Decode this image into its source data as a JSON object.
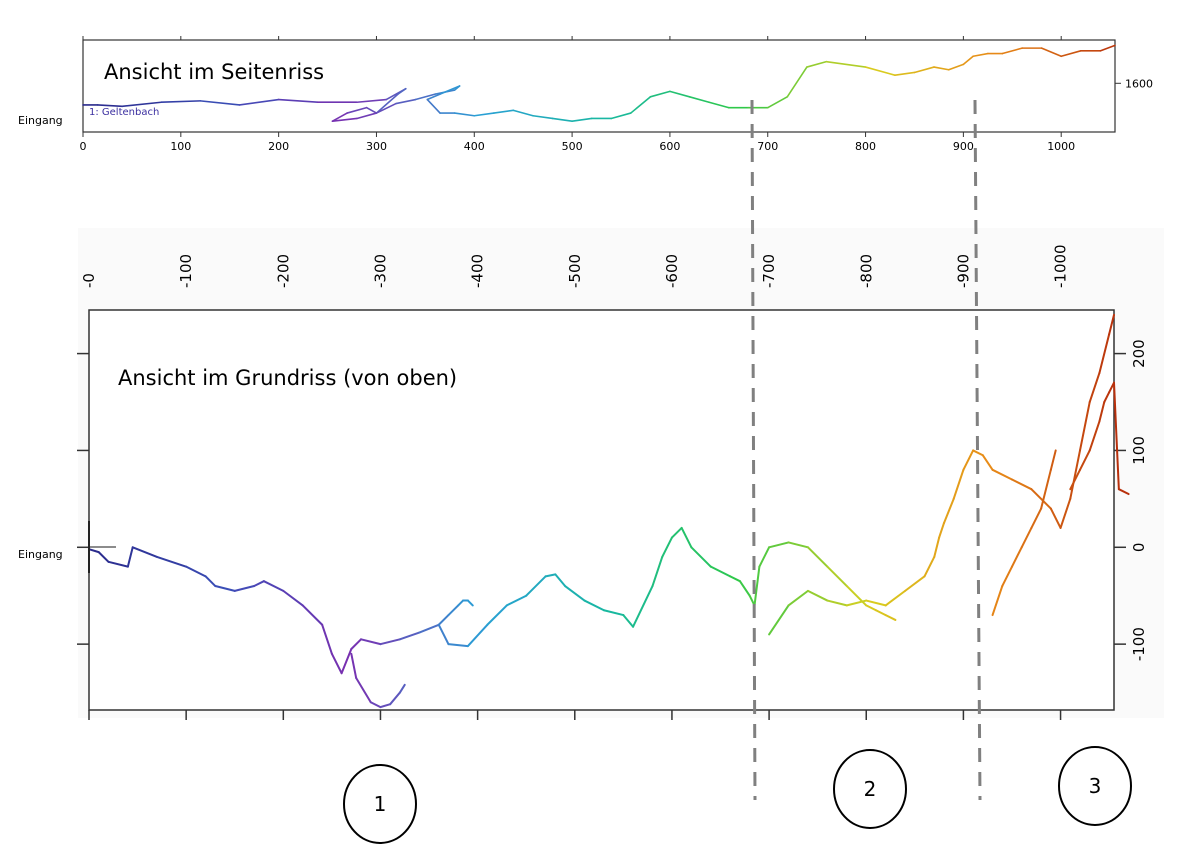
{
  "top_panel": {
    "title": "Ansicht im Seitenriss",
    "entrance_label": "Eingang",
    "series_label": "1: Geltenbach",
    "x_ticks": [
      "0",
      "100",
      "200",
      "300",
      "400",
      "500",
      "600",
      "700",
      "800",
      "900",
      "1000"
    ],
    "y_ticks": [
      "1600"
    ]
  },
  "bottom_panel": {
    "title": "Ansicht im Grundriss (von oben)",
    "entrance_label": "Eingang",
    "x_ticks": [
      "-0",
      "-100",
      "-200",
      "-300",
      "-400",
      "-500",
      "-600",
      "-700",
      "-800",
      "-900",
      "-1000"
    ],
    "y_ticks": [
      "200",
      "100",
      "0",
      "-100"
    ]
  },
  "sections": [
    "1",
    "2",
    "3"
  ],
  "colors": {
    "axis": "#333333",
    "divider": "#808080",
    "gradient": [
      "#2a2a8c",
      "#3b4fb8",
      "#7a2fb0",
      "#2a9fd6",
      "#18b8a0",
      "#2ec84a",
      "#d8d020",
      "#e88a18",
      "#b8300c"
    ]
  },
  "chart_data": [
    {
      "type": "line",
      "title": "Ansicht im Seitenriss",
      "xlabel": "",
      "ylabel": "",
      "xlim": [
        0,
        1055
      ],
      "ylim": [
        1564,
        1632
      ],
      "x_ticks": [
        0,
        100,
        200,
        300,
        400,
        500,
        600,
        700,
        800,
        900,
        1000
      ],
      "y_ticks": [
        1600
      ],
      "grid": false,
      "legend": "top-left",
      "series": [
        {
          "name": "1: Geltenbach",
          "points": [
            [
              0,
              1584
            ],
            [
              15,
              1584
            ],
            [
              40,
              1583
            ],
            [
              80,
              1586
            ],
            [
              120,
              1587
            ],
            [
              160,
              1584
            ],
            [
              200,
              1588
            ],
            [
              240,
              1586
            ],
            [
              280,
              1586
            ],
            [
              310,
              1588
            ],
            [
              330,
              1596
            ],
            [
              322,
              1592
            ],
            [
              300,
              1578
            ],
            [
              290,
              1582
            ],
            [
              270,
              1578
            ],
            [
              255,
              1572
            ],
            [
              280,
              1574
            ],
            [
              300,
              1578
            ],
            [
              320,
              1585
            ],
            [
              340,
              1588
            ],
            [
              360,
              1592
            ],
            [
              380,
              1595
            ],
            [
              385,
              1598
            ],
            [
              365,
              1592
            ],
            [
              352,
              1588
            ],
            [
              365,
              1578
            ],
            [
              380,
              1578
            ],
            [
              400,
              1576
            ],
            [
              420,
              1578
            ],
            [
              440,
              1580
            ],
            [
              460,
              1576
            ],
            [
              480,
              1574
            ],
            [
              500,
              1572
            ],
            [
              520,
              1574
            ],
            [
              540,
              1574
            ],
            [
              560,
              1578
            ],
            [
              580,
              1590
            ],
            [
              600,
              1594
            ],
            [
              620,
              1590
            ],
            [
              640,
              1586
            ],
            [
              660,
              1582
            ],
            [
              680,
              1582
            ],
            [
              700,
              1582
            ],
            [
              720,
              1590
            ],
            [
              740,
              1612
            ],
            [
              760,
              1616
            ],
            [
              800,
              1612
            ],
            [
              830,
              1606
            ],
            [
              850,
              1608
            ],
            [
              870,
              1612
            ],
            [
              885,
              1610
            ],
            [
              900,
              1614
            ],
            [
              910,
              1620
            ],
            [
              925,
              1622
            ],
            [
              940,
              1622
            ],
            [
              960,
              1626
            ],
            [
              980,
              1626
            ],
            [
              1000,
              1620
            ],
            [
              1020,
              1624
            ],
            [
              1040,
              1624
            ],
            [
              1055,
              1628
            ]
          ]
        }
      ]
    },
    {
      "type": "line",
      "title": "Ansicht im Grundriss (von oben)",
      "xlabel": "",
      "ylabel": "",
      "xlim": [
        0,
        1055
      ],
      "ylim": [
        -168,
        245
      ],
      "x_ticks": [
        0,
        100,
        200,
        300,
        400,
        500,
        600,
        700,
        800,
        900,
        1000
      ],
      "y_ticks": [
        -100,
        0,
        100,
        200
      ],
      "grid": false,
      "legend": "none",
      "series": [
        {
          "name": "",
          "points": [
            [
              0,
              -2
            ],
            [
              10,
              -5
            ],
            [
              20,
              -15
            ],
            [
              40,
              -20
            ],
            [
              45,
              0
            ],
            [
              70,
              -10
            ],
            [
              100,
              -20
            ],
            [
              120,
              -30
            ],
            [
              130,
              -40
            ],
            [
              150,
              -45
            ],
            [
              170,
              -40
            ],
            [
              180,
              -35
            ],
            [
              200,
              -45
            ],
            [
              220,
              -60
            ],
            [
              240,
              -80
            ],
            [
              250,
              -110
            ],
            [
              260,
              -130
            ],
            [
              270,
              -105
            ],
            [
              280,
              -95
            ],
            [
              300,
              -100
            ],
            [
              320,
              -95
            ],
            [
              340,
              -88
            ],
            [
              360,
              -80
            ],
            [
              370,
              -70
            ],
            [
              380,
              -60
            ],
            [
              385,
              -55
            ],
            [
              390,
              -55
            ],
            [
              395,
              -60
            ]
          ]
        },
        {
          "name": "",
          "points": [
            [
              270,
              -110
            ],
            [
              275,
              -135
            ],
            [
              290,
              -160
            ],
            [
              300,
              -165
            ],
            [
              310,
              -162
            ],
            [
              320,
              -150
            ],
            [
              325,
              -142
            ]
          ]
        },
        {
          "name": "",
          "points": [
            [
              360,
              -80
            ],
            [
              370,
              -100
            ],
            [
              390,
              -102
            ],
            [
              410,
              -80
            ],
            [
              430,
              -60
            ],
            [
              450,
              -50
            ],
            [
              470,
              -30
            ],
            [
              480,
              -28
            ],
            [
              490,
              -40
            ],
            [
              510,
              -55
            ],
            [
              530,
              -65
            ],
            [
              550,
              -70
            ],
            [
              560,
              -82
            ],
            [
              580,
              -40
            ],
            [
              590,
              -10
            ],
            [
              600,
              10
            ],
            [
              610,
              20
            ],
            [
              620,
              0
            ],
            [
              640,
              -20
            ],
            [
              660,
              -30
            ],
            [
              670,
              -35
            ],
            [
              680,
              -50
            ],
            [
              685,
              -60
            ],
            [
              690,
              -20
            ],
            [
              700,
              0
            ],
            [
              720,
              5
            ],
            [
              740,
              0
            ],
            [
              760,
              -20
            ],
            [
              780,
              -40
            ],
            [
              800,
              -60
            ],
            [
              810,
              -65
            ],
            [
              820,
              -70
            ],
            [
              830,
              -75
            ]
          ]
        },
        {
          "name": "",
          "points": [
            [
              700,
              -90
            ],
            [
              720,
              -60
            ],
            [
              740,
              -45
            ],
            [
              760,
              -55
            ],
            [
              780,
              -60
            ],
            [
              800,
              -55
            ],
            [
              820,
              -60
            ],
            [
              840,
              -45
            ],
            [
              860,
              -30
            ],
            [
              870,
              -10
            ],
            [
              875,
              10
            ],
            [
              880,
              25
            ],
            [
              890,
              50
            ],
            [
              900,
              80
            ],
            [
              910,
              100
            ],
            [
              920,
              95
            ],
            [
              930,
              80
            ],
            [
              950,
              70
            ],
            [
              970,
              60
            ],
            [
              990,
              40
            ],
            [
              1000,
              20
            ],
            [
              1010,
              50
            ],
            [
              1020,
              100
            ],
            [
              1030,
              150
            ],
            [
              1040,
              180
            ],
            [
              1050,
              220
            ],
            [
              1055,
              240
            ]
          ]
        },
        {
          "name": "",
          "points": [
            [
              930,
              -70
            ],
            [
              940,
              -40
            ],
            [
              950,
              -20
            ],
            [
              960,
              0
            ],
            [
              970,
              20
            ],
            [
              980,
              40
            ],
            [
              990,
              80
            ],
            [
              995,
              100
            ]
          ]
        },
        {
          "name": "",
          "points": [
            [
              1010,
              60
            ],
            [
              1020,
              80
            ],
            [
              1030,
              100
            ],
            [
              1040,
              130
            ],
            [
              1045,
              150
            ],
            [
              1050,
              160
            ],
            [
              1055,
              170
            ],
            [
              1060,
              60
            ],
            [
              1070,
              55
            ]
          ]
        }
      ]
    }
  ]
}
